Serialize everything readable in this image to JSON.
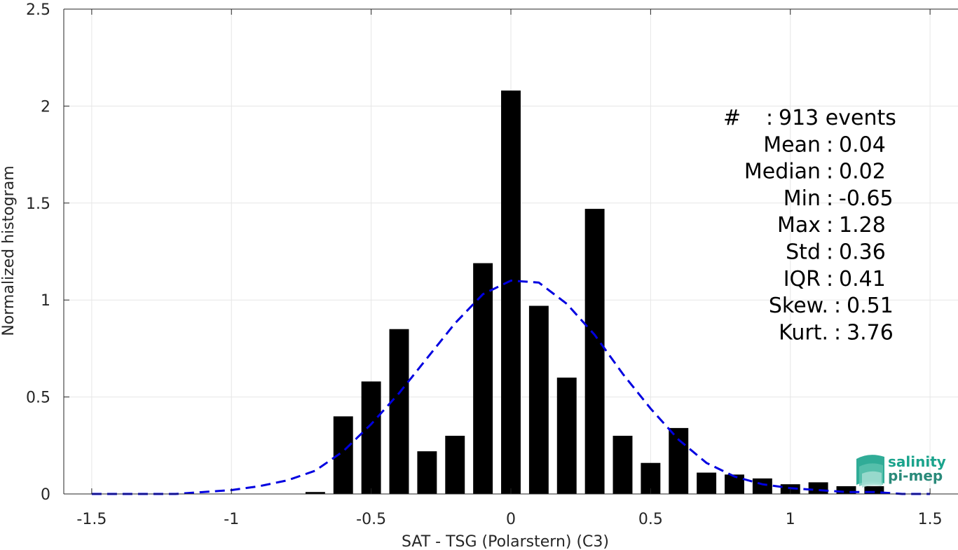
{
  "chart_data": {
    "type": "bar",
    "xlabel": "SAT - TSG (Polarstern) (C3)",
    "ylabel": "Normalized histogram",
    "xlim": [
      -1.6,
      1.6
    ],
    "ylim": [
      0,
      2.5
    ],
    "grid": true,
    "xticks": [
      -1.5,
      -1,
      -0.5,
      0,
      0.5,
      1,
      1.5
    ],
    "xtick_labels": [
      "-1.5",
      "-1",
      "-0.5",
      "0",
      "0.5",
      "1",
      "1.5"
    ],
    "yticks": [
      0,
      0.5,
      1,
      1.5,
      2,
      2.5
    ],
    "ytick_labels": [
      "0",
      "0.5",
      "1",
      "1.5",
      "2",
      "2.5"
    ],
    "bin_width": 0.07,
    "bars": {
      "x": [
        -0.7,
        -0.6,
        -0.5,
        -0.4,
        -0.3,
        -0.2,
        -0.1,
        0.0,
        0.1,
        0.2,
        0.3,
        0.4,
        0.5,
        0.6,
        0.7,
        0.8,
        0.9,
        1.0,
        1.1,
        1.2,
        1.3
      ],
      "values": [
        0.01,
        0.4,
        0.58,
        0.85,
        0.22,
        0.3,
        1.19,
        2.08,
        0.97,
        0.6,
        1.47,
        0.3,
        0.16,
        0.34,
        0.11,
        0.1,
        0.08,
        0.05,
        0.06,
        0.04,
        0.04
      ],
      "color": "#000000"
    },
    "fit_curve": {
      "style": "dashed",
      "color": "#0000e0",
      "x": [
        -1.5,
        -1.4,
        -1.3,
        -1.2,
        -1.1,
        -1.0,
        -0.9,
        -0.8,
        -0.7,
        -0.6,
        -0.5,
        -0.4,
        -0.3,
        -0.2,
        -0.1,
        0.0,
        0.1,
        0.2,
        0.3,
        0.4,
        0.5,
        0.6,
        0.7,
        0.8,
        0.9,
        1.0,
        1.1,
        1.2,
        1.3,
        1.4,
        1.5
      ],
      "y": [
        0.0,
        0.0,
        0.0,
        0.0,
        0.01,
        0.02,
        0.04,
        0.07,
        0.12,
        0.22,
        0.36,
        0.52,
        0.7,
        0.88,
        1.03,
        1.1,
        1.09,
        0.98,
        0.82,
        0.62,
        0.44,
        0.28,
        0.16,
        0.09,
        0.05,
        0.03,
        0.02,
        0.01,
        0.01,
        0.0,
        0.0
      ]
    }
  },
  "stats": {
    "lines": [
      {
        "label": "#",
        "sep": ":",
        "value": "913 events"
      },
      {
        "label": "Mean",
        "sep": ":",
        "value": "0.04"
      },
      {
        "label": "Median",
        "sep": ":",
        "value": "0.02"
      },
      {
        "label": "Min",
        "sep": ":",
        "value": "-0.65"
      },
      {
        "label": "Max",
        "sep": ":",
        "value": "1.28"
      },
      {
        "label": "Std",
        "sep": ":",
        "value": "0.36"
      },
      {
        "label": "IQR",
        "sep": ":",
        "value": "0.41"
      },
      {
        "label": "Skew.",
        "sep": ":",
        "value": "0.51"
      },
      {
        "label": "Kurt.",
        "sep": ":",
        "value": "3.76"
      }
    ]
  },
  "logo": {
    "line1": "salinity",
    "line2": "pi-mep",
    "color_primary": "#1aa38c",
    "color_secondary": "#2a8a7a"
  }
}
